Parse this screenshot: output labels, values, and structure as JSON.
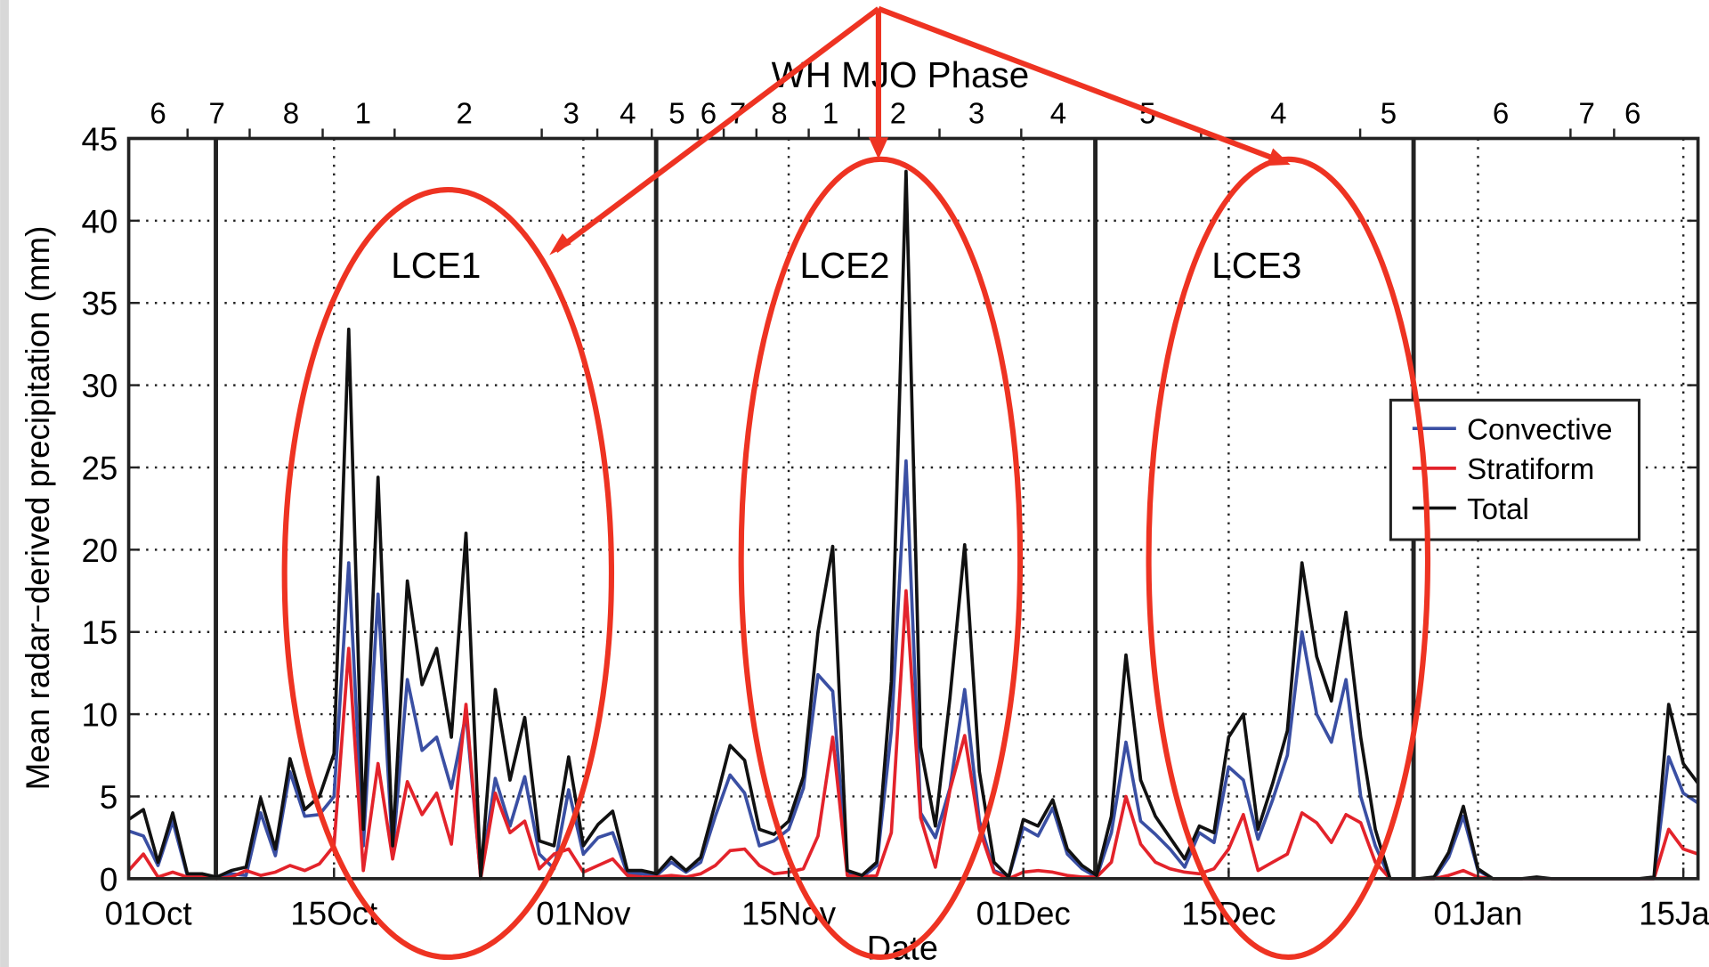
{
  "chart_data": {
    "type": "line",
    "title": "WH MJO Phase",
    "x_label": "Date",
    "y_label": "Mean radar−derived precipitation (mm)",
    "mjo_phases": [
      "6",
      "7",
      "8",
      "1",
      "2",
      "3",
      "4",
      "5",
      "6",
      "7",
      "8",
      "1",
      "2",
      "3",
      "4",
      "5",
      "4",
      "5",
      "6",
      "7",
      "6"
    ],
    "annotations": [
      "LCE1",
      "LCE2",
      "LCE3"
    ],
    "categories": [
      "01Oct",
      null,
      null,
      null,
      null,
      null,
      null,
      null,
      null,
      null,
      null,
      null,
      null,
      null,
      "15Oct",
      null,
      null,
      null,
      null,
      null,
      null,
      null,
      null,
      null,
      null,
      null,
      null,
      null,
      null,
      null,
      null,
      "01Nov",
      null,
      null,
      null,
      null,
      null,
      null,
      null,
      null,
      null,
      null,
      null,
      null,
      null,
      "15Nov",
      null,
      null,
      null,
      null,
      null,
      null,
      null,
      null,
      null,
      null,
      null,
      null,
      null,
      null,
      null,
      "01Dec",
      null,
      null,
      null,
      null,
      null,
      null,
      null,
      null,
      null,
      null,
      null,
      null,
      null,
      "15Dec",
      null,
      null,
      null,
      null,
      null,
      null,
      null,
      null,
      null,
      null,
      null,
      null,
      null,
      null,
      null,
      null,
      "01Jan",
      null,
      null,
      null,
      null,
      null,
      null,
      null,
      null,
      null,
      null,
      null,
      null,
      null,
      "15Jan",
      null
    ],
    "series": [
      {
        "name": "Convective",
        "color": "#3a4fa3",
        "values": [
          2.9,
          2.6,
          0.8,
          3.5,
          0.2,
          0.2,
          0.1,
          0.3,
          0.2,
          4.0,
          1.4,
          6.5,
          3.8,
          3.9,
          5.0,
          19.2,
          2.0,
          17.3,
          1.5,
          12.1,
          7.8,
          8.6,
          5.5,
          10.0,
          0.1,
          6.1,
          3.2,
          6.2,
          1.5,
          0.6,
          5.4,
          1.5,
          2.5,
          2.8,
          0.3,
          0.3,
          0.2,
          1.0,
          0.4,
          1.0,
          3.8,
          6.3,
          5.2,
          2.0,
          2.3,
          3.0,
          5.5,
          12.4,
          11.4,
          0.4,
          0.1,
          0.8,
          9.0,
          25.4,
          4.0,
          2.5,
          5.5,
          11.5,
          3.5,
          0.5,
          0.1,
          3.1,
          2.6,
          4.3,
          1.5,
          0.6,
          0.1,
          2.8,
          8.3,
          3.5,
          2.7,
          1.8,
          0.7,
          2.8,
          2.2,
          6.8,
          6.0,
          2.4,
          4.8,
          7.5,
          15.0,
          10.0,
          8.3,
          12.1,
          5.0,
          2.0,
          0,
          0,
          0,
          0,
          1.3,
          3.8,
          0.5,
          0,
          0,
          0,
          0,
          0,
          0,
          0,
          0,
          0,
          0,
          0,
          0,
          7.4,
          5.2,
          4.6
        ]
      },
      {
        "name": "Stratiform",
        "color": "#e3232b",
        "values": [
          0.5,
          1.5,
          0.1,
          0.4,
          0.1,
          0.1,
          0,
          0.1,
          0.5,
          0.2,
          0.4,
          0.8,
          0.5,
          0.9,
          2.0,
          14.0,
          0.5,
          7.0,
          1.2,
          5.9,
          3.9,
          5.2,
          2.1,
          10.6,
          0,
          5.2,
          2.8,
          3.5,
          0.6,
          1.5,
          1.8,
          0.4,
          0.8,
          1.2,
          0.2,
          0.1,
          0.1,
          0.2,
          0.1,
          0.3,
          0.8,
          1.7,
          1.8,
          0.8,
          0.3,
          0.4,
          0.6,
          2.6,
          8.6,
          0.2,
          0.1,
          0.2,
          2.8,
          17.5,
          3.7,
          0.7,
          5.4,
          8.7,
          3.0,
          0.4,
          0,
          0.4,
          0.5,
          0.4,
          0.2,
          0.1,
          0.1,
          1.0,
          5.0,
          2.1,
          1.0,
          0.6,
          0.4,
          0.3,
          0.6,
          1.8,
          3.9,
          0.5,
          1.0,
          1.5,
          4.0,
          3.4,
          2.2,
          3.9,
          3.4,
          1.0,
          0,
          0,
          0,
          0,
          0.2,
          0.5,
          0.1,
          0,
          0,
          0,
          0,
          0,
          0,
          0,
          0,
          0,
          0,
          0,
          0,
          3.0,
          1.8,
          1.5
        ]
      },
      {
        "name": "Total",
        "color": "#111111",
        "values": [
          3.6,
          4.2,
          1.0,
          4.0,
          0.3,
          0.3,
          0.1,
          0.5,
          0.7,
          4.9,
          1.8,
          7.3,
          4.2,
          5.0,
          7.6,
          33.4,
          3.0,
          24.4,
          2.0,
          18.1,
          11.8,
          14.0,
          8.6,
          21.0,
          0.1,
          11.5,
          6.0,
          9.8,
          2.3,
          2.0,
          7.4,
          2.0,
          3.3,
          4.1,
          0.5,
          0.5,
          0.3,
          1.3,
          0.5,
          1.3,
          4.6,
          8.1,
          7.2,
          3.0,
          2.7,
          3.5,
          6.2,
          15.0,
          20.2,
          0.5,
          0.2,
          1.0,
          12.0,
          43.0,
          8.0,
          3.2,
          11.0,
          20.3,
          6.5,
          1.0,
          0.1,
          3.6,
          3.2,
          4.8,
          1.8,
          0.8,
          0.2,
          3.8,
          13.6,
          6.0,
          3.8,
          2.5,
          1.2,
          3.2,
          2.8,
          8.6,
          10.0,
          3.0,
          5.8,
          9.0,
          19.2,
          13.5,
          10.8,
          16.2,
          8.6,
          3.0,
          0,
          0,
          0,
          0.1,
          1.6,
          4.4,
          0.6,
          0,
          0,
          0,
          0.1,
          0,
          0,
          0,
          0,
          0,
          0,
          0,
          0.1,
          10.6,
          7.0,
          5.8
        ]
      }
    ],
    "ylim": [
      0,
      45
    ],
    "yticks": [
      0,
      5,
      10,
      15,
      20,
      25,
      30,
      35,
      40,
      45
    ],
    "grid": true,
    "legend": "right"
  }
}
